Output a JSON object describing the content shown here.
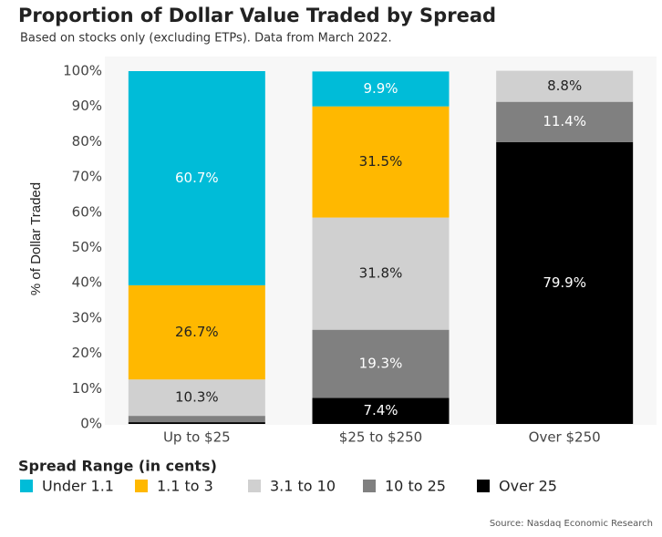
{
  "chart_data": {
    "type": "stacked_bar",
    "title": "Proportion of Dollar Value Traded by Spread",
    "subtitle": "Based on stocks only (excluding ETPs). Data from March 2022.",
    "y_label": "% of Dollar Traded",
    "legend_title": "Spread Range (in cents)",
    "source": "Source: Nasdaq Economic Research",
    "categories": [
      "Up to $25",
      "$25 to $250",
      "Over $250"
    ],
    "series": [
      {
        "name": "Under 1.1",
        "color": "#00bcd8",
        "values": [
          60.7,
          9.9,
          null
        ],
        "value_labels": [
          "60.7%",
          "9.9%",
          null
        ]
      },
      {
        "name": "1.1 to 3",
        "color": "#ffb800",
        "values": [
          26.7,
          31.5,
          null
        ],
        "value_labels": [
          "26.7%",
          "31.5%",
          null
        ]
      },
      {
        "name": "3.1 to 10",
        "color": "#d0d0d0",
        "values": [
          10.3,
          31.8,
          8.8
        ],
        "value_labels": [
          "10.3%",
          "31.8%",
          "8.8%"
        ]
      },
      {
        "name": "10 to 25",
        "color": "#808080",
        "values": [
          1.8,
          19.3,
          11.4
        ],
        "value_labels": [
          null,
          "19.3%",
          "11.4%"
        ]
      },
      {
        "name": "Over 25",
        "color": "#000000",
        "values": [
          0.5,
          7.4,
          79.9
        ],
        "value_labels": [
          null,
          "7.4%",
          "79.9%"
        ]
      }
    ],
    "ylim": [
      0,
      100
    ],
    "yticks": [
      {
        "value": 0,
        "label": "0%"
      },
      {
        "value": 10,
        "label": "10%"
      },
      {
        "value": 20,
        "label": "20%"
      },
      {
        "value": 30,
        "label": "30%"
      },
      {
        "value": 40,
        "label": "40%"
      },
      {
        "value": 50,
        "label": "50%"
      },
      {
        "value": 60,
        "label": "60%"
      },
      {
        "value": 70,
        "label": "70%"
      },
      {
        "value": 80,
        "label": "80%"
      },
      {
        "value": 90,
        "label": "90%"
      },
      {
        "value": 100,
        "label": "100%"
      }
    ]
  }
}
